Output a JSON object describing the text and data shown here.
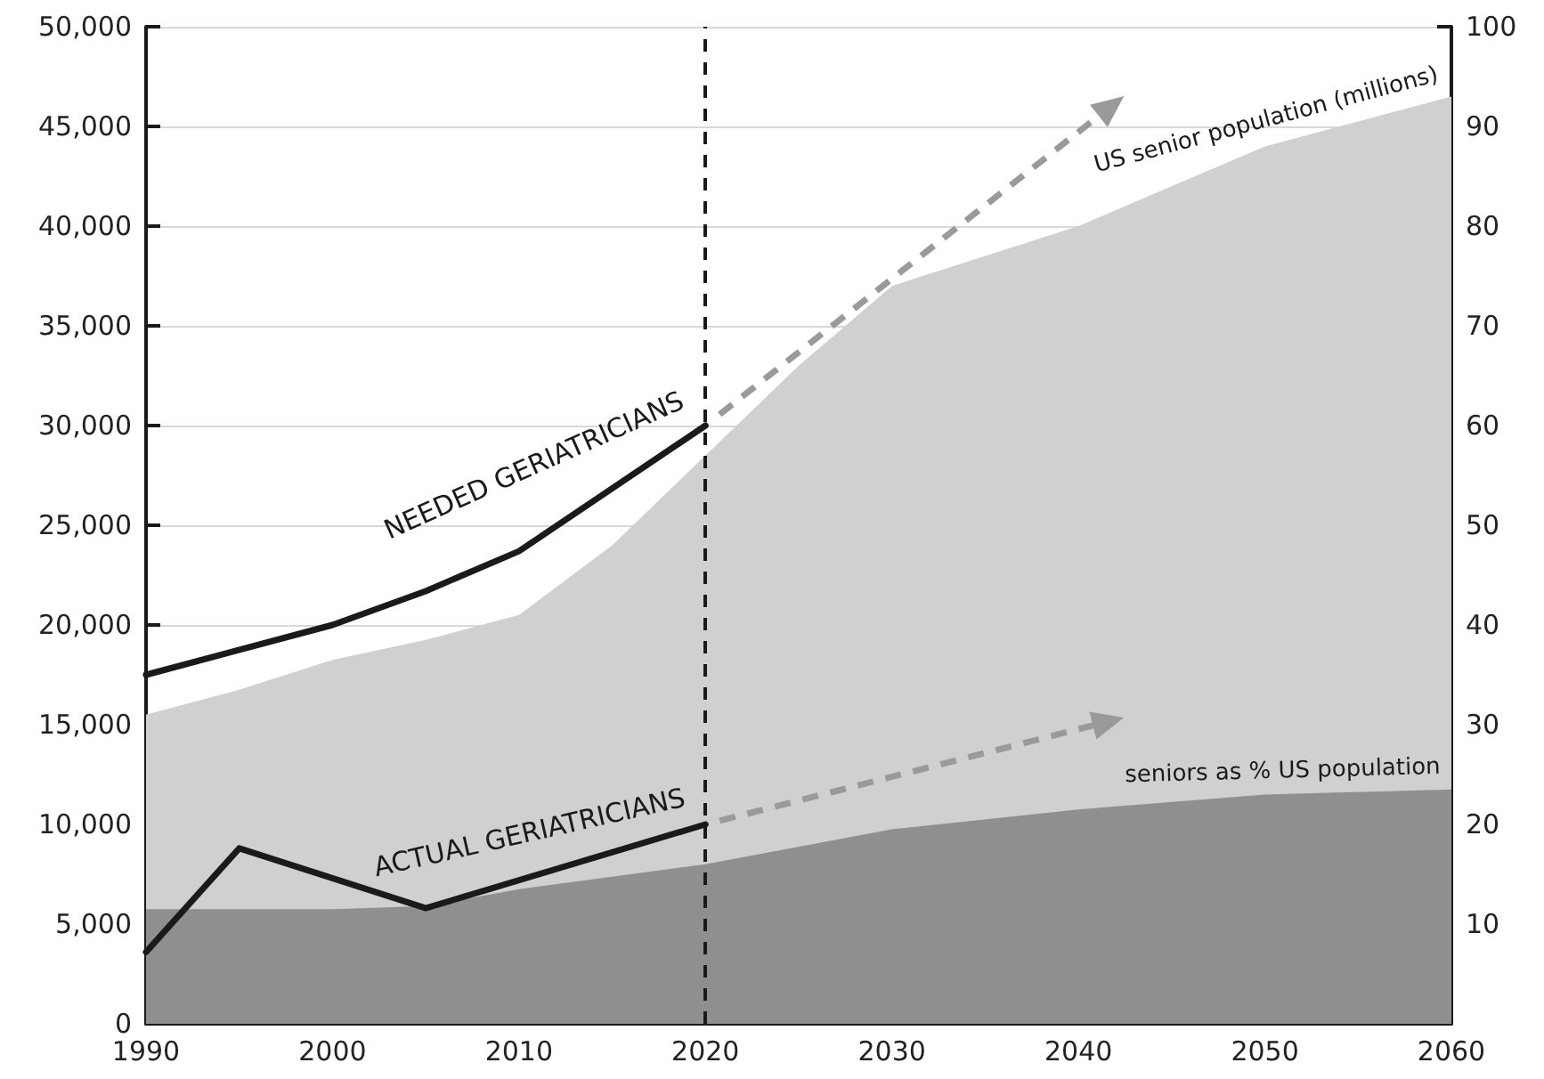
{
  "chart_data": {
    "type": "line",
    "xlim": [
      1990,
      2060
    ],
    "xticks": [
      1990,
      {
        "value": 1995,
        "label": null
      },
      2000,
      {
        "value": 2005,
        "label": null
      },
      2010,
      {
        "value": 2015,
        "label": null
      },
      2020,
      {
        "value": 2025,
        "label": null
      },
      2030,
      {
        "value": 2035,
        "label": null
      },
      2040,
      {
        "value": 2045,
        "label": null
      },
      2050,
      {
        "value": 2055,
        "label": null
      },
      2060
    ],
    "ylim": [
      0,
      50000
    ],
    "yticks": [
      0,
      {
        "value": 5000,
        "label": "5,000"
      },
      {
        "value": 10000,
        "label": "10,000"
      },
      {
        "value": 15000,
        "label": "15,000"
      },
      {
        "value": 20000,
        "label": "20,000"
      },
      {
        "value": 25000,
        "label": "25,000"
      },
      {
        "value": 30000,
        "label": "30,000"
      },
      {
        "value": 35000,
        "label": "35,000"
      },
      {
        "value": 40000,
        "label": "40,000"
      },
      {
        "value": 45000,
        "label": "45,000"
      },
      {
        "value": 50000,
        "label": "50,000"
      }
    ],
    "y2lim": [
      0,
      100
    ],
    "y2ticks": [
      10,
      20,
      30,
      40,
      50,
      60,
      70,
      80,
      90,
      100
    ],
    "grid": "y",
    "series": [
      {
        "name": "US senior population (millions)",
        "type": "area",
        "axis": "y2",
        "color": "#d0d0d0",
        "x": [
          1990,
          1995,
          2000,
          2005,
          2010,
          2015,
          2020,
          2025,
          2030,
          2035,
          2040,
          2050,
          2060
        ],
        "values": [
          31,
          33.5,
          36.5,
          38.5,
          41,
          48,
          57,
          66,
          74,
          77,
          80,
          88,
          93
        ]
      },
      {
        "name": "seniors as % US population",
        "type": "area",
        "axis": "y2",
        "color": "#8f8f8f",
        "x": [
          1990,
          2000,
          2005,
          2010,
          2020,
          2030,
          2040,
          2050,
          2060
        ],
        "values": [
          11.5,
          11.5,
          11.8,
          13.5,
          16,
          19.5,
          21.5,
          23,
          23.5
        ]
      },
      {
        "name": "NEEDED GERIATRICIANS",
        "color": "#1a1a1a",
        "x": [
          1990,
          2000,
          2005,
          2010,
          2020
        ],
        "values": [
          17500,
          20000,
          21700,
          23700,
          30000
        ]
      },
      {
        "name": "ACTUAL GERIATRICIANS",
        "color": "#1a1a1a",
        "x": [
          1990,
          1995,
          2005,
          2020
        ],
        "values": [
          3600,
          8800,
          5800,
          10000
        ]
      }
    ],
    "ref_lines": [
      {
        "axis": "x",
        "value": 2020,
        "color": "#1a1a1a",
        "line_style": "dashed"
      }
    ]
  }
}
